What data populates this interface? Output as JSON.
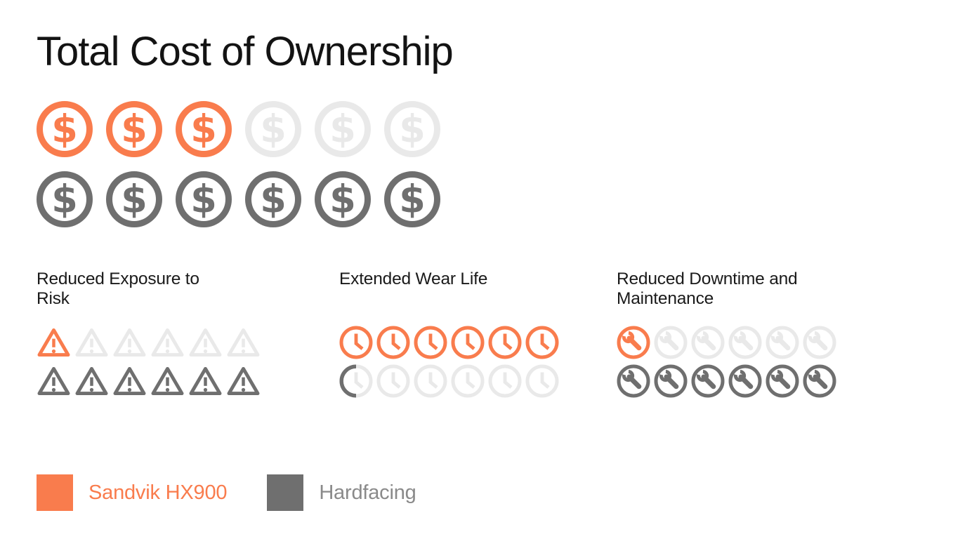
{
  "title": "Total Cost of Ownership",
  "colors": {
    "orange": "#F97C4D",
    "gray": "#6F6F6F",
    "inactive": "#E9E9E9",
    "legend_gray_text": "#8A8A8A",
    "title_black": "#131313"
  },
  "legend": [
    {
      "name": "Sandvik HX900",
      "color_key": "orange"
    },
    {
      "name": "Hardfacing",
      "color_key": "gray"
    }
  ],
  "chart_data": {
    "type": "pictograph",
    "title": "Total Cost of Ownership",
    "icons_per_row": 6,
    "legend_position": "bottom-left",
    "series_legend": [
      {
        "name": "Sandvik HX900",
        "color": "#F97C4D"
      },
      {
        "name": "Hardfacing",
        "color": "#6F6F6F"
      }
    ],
    "inactive_color": "#E9E9E9",
    "metrics": [
      {
        "label": "Total Cost of Ownership",
        "icon": "dollar-circle",
        "sandvik_hx900": 3,
        "hardfacing": 6
      },
      {
        "label": "Reduced Exposure to Risk",
        "icon": "warning-triangle",
        "sandvik_hx900": 1,
        "hardfacing": 6
      },
      {
        "label": "Extended Wear Life",
        "icon": "clock",
        "sandvik_hx900": 6,
        "hardfacing": 0.5
      },
      {
        "label": "Reduced Downtime and Maintenance",
        "icon": "wrench-circle",
        "sandvik_hx900": 1,
        "hardfacing": 6
      }
    ]
  }
}
